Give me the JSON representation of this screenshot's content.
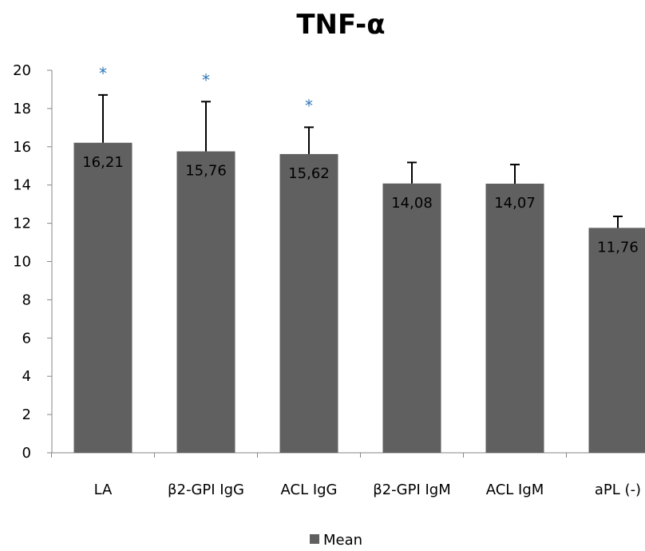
{
  "chart_data": {
    "type": "bar",
    "title": "TNF-α",
    "xlabel": "",
    "ylabel": "",
    "ylim": [
      0,
      20
    ],
    "yticks": [
      0,
      2,
      4,
      6,
      8,
      10,
      12,
      14,
      16,
      18,
      20
    ],
    "grid": false,
    "legend_position": "bottom",
    "categories": [
      "LA",
      "β2-GPI IgG",
      "ACL IgG",
      "β2-GPI IgM",
      "ACL IgM",
      "aPL (-)"
    ],
    "series": [
      {
        "name": "Mean",
        "color": "#606060",
        "values": [
          16.21,
          15.76,
          15.62,
          14.08,
          14.07,
          11.76
        ],
        "error_plus": [
          2.5,
          2.6,
          1.4,
          1.1,
          1.0,
          0.6
        ]
      }
    ],
    "data_labels": [
      "16,21",
      "15,76",
      "15,62",
      "14,08",
      "14,07",
      "11,76"
    ],
    "significance_markers": [
      "*",
      "*",
      "*",
      "",
      "",
      ""
    ],
    "significance_color": "#2e75b6"
  }
}
